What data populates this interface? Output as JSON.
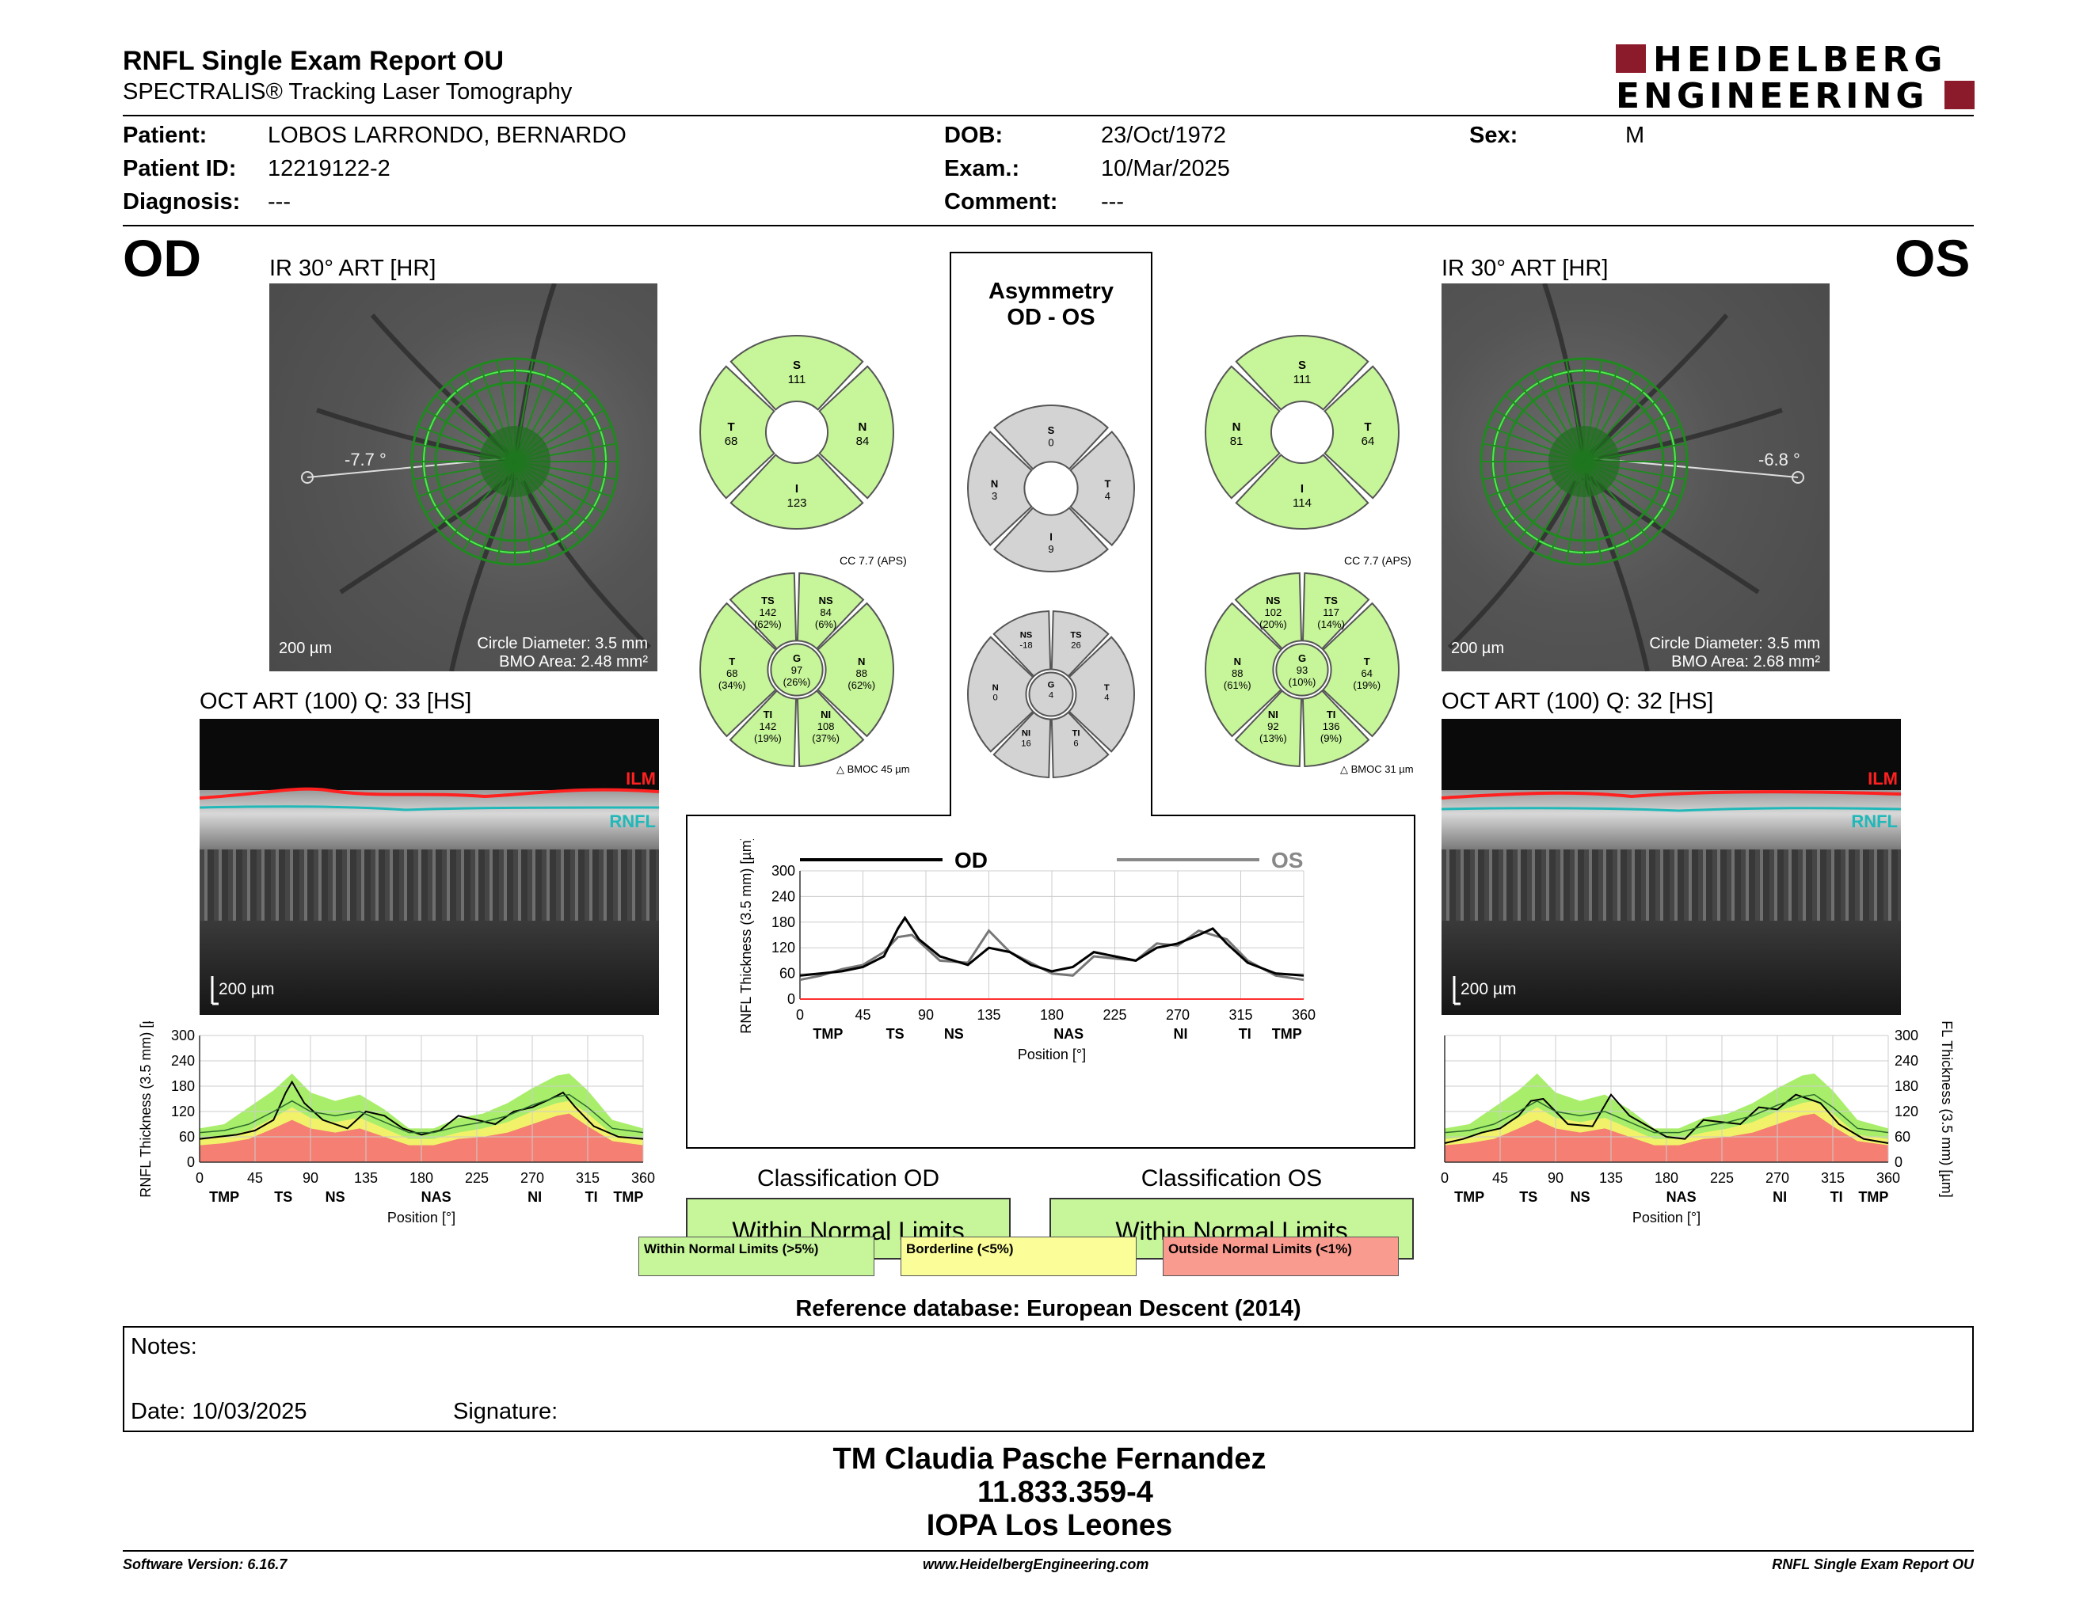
{
  "report": {
    "title": "RNFL Single Exam Report OU",
    "subtitle": "SPECTRALIS® Tracking Laser Tomography",
    "logo_line1": "HEIDELBERG",
    "logo_line2": "ENGINEERING",
    "brand_color": "#8b1a2b"
  },
  "patient": {
    "patient_label": "Patient:",
    "patient_value": "LOBOS LARRONDO, BERNARDO",
    "id_label": "Patient ID:",
    "id_value": "12219122-2",
    "diag_label": "Diagnosis:",
    "diag_value": "---",
    "dob_label": "DOB:",
    "dob_value": "23/Oct/1972",
    "exam_label": "Exam.:",
    "exam_value": "10/Mar/2025",
    "comment_label": "Comment:",
    "comment_value": "---",
    "sex_label": "Sex:",
    "sex_value": "M"
  },
  "od": {
    "eye": "OD",
    "ir_label": "IR 30° ART [HR]",
    "angle": "-7.7 °",
    "scale": "200 µm",
    "circle_diam": "Circle Diameter: 3.5 mm",
    "bmo_area": "BMO Area: 2.48 mm²",
    "oct_label": "OCT ART (100) Q: 33 [HS]",
    "ilm": "ILM",
    "rnfl": "RNFL",
    "oct_scale": "200 µm",
    "quad": {
      "S": "S",
      "S_val": "111",
      "T": "T",
      "T_val": "68",
      "N": "N",
      "N_val": "84",
      "I": "I",
      "I_val": "123"
    },
    "cc": "CC 7.7 (APS)",
    "sect": {
      "TS": "TS",
      "TS_v": "142",
      "TS_p": "(62%)",
      "NS": "NS",
      "NS_v": "84",
      "NS_p": "(6%)",
      "T": "T",
      "T_v": "68",
      "T_p": "(34%)",
      "G": "G",
      "G_v": "97",
      "G_p": "(26%)",
      "N": "N",
      "N_v": "88",
      "N_p": "(62%)",
      "TI": "TI",
      "TI_v": "142",
      "TI_p": "(19%)",
      "NI": "NI",
      "NI_v": "108",
      "NI_p": "(37%)"
    },
    "bmoc": "BMOC 45 µm"
  },
  "os": {
    "eye": "OS",
    "ir_label": "IR 30° ART [HR]",
    "angle": "-6.8 °",
    "scale": "200 µm",
    "circle_diam": "Circle Diameter: 3.5 mm",
    "bmo_area": "BMO Area: 2.68 mm²",
    "oct_label": "OCT ART (100) Q: 32 [HS]",
    "ilm": "ILM",
    "rnfl": "RNFL",
    "oct_scale": "200 µm",
    "quad": {
      "S": "S",
      "S_val": "111",
      "T": "T",
      "T_val": "64",
      "N": "N",
      "N_val": "81",
      "I": "I",
      "I_val": "114"
    },
    "cc": "CC 7.7 (APS)",
    "sect": {
      "NS": "NS",
      "NS_v": "102",
      "NS_p": "(20%)",
      "TS": "TS",
      "TS_v": "117",
      "TS_p": "(14%)",
      "N": "N",
      "N_v": "88",
      "N_p": "(61%)",
      "G": "G",
      "G_v": "93",
      "G_p": "(10%)",
      "T": "T",
      "T_v": "64",
      "T_p": "(19%)",
      "NI": "NI",
      "NI_v": "92",
      "NI_p": "(13%)",
      "TI": "TI",
      "TI_v": "136",
      "TI_p": "(9%)"
    },
    "bmoc": "BMOC 31 µm"
  },
  "asym": {
    "title1": "Asymmetry",
    "title2": "OD - OS",
    "quad": {
      "S": "S",
      "S_val": "0",
      "N": "N",
      "N_val": "3",
      "T": "T",
      "T_val": "4",
      "I": "I",
      "I_val": "9"
    },
    "sect": {
      "NS": "NS",
      "NS_v": "-18",
      "TS": "TS",
      "TS_v": "26",
      "N": "N",
      "N_v": "0",
      "G": "G",
      "G_v": "4",
      "T": "T",
      "T_v": "4",
      "NI": "NI",
      "NI_v": "16",
      "TI": "TI",
      "TI_v": "6"
    }
  },
  "plots": {
    "ylabel": "RNFL Thickness (3.5 mm) [µm]",
    "xlabel": "Position [°]",
    "y_ticks": [
      "300",
      "240",
      "180",
      "120",
      "60",
      "0"
    ],
    "y_ticks_center": [
      "300",
      "240",
      "180",
      "120",
      "60",
      "0"
    ],
    "x_ticks": [
      "0",
      "45",
      "90",
      "135",
      "180",
      "225",
      "270",
      "315",
      "360"
    ],
    "sector_labels": [
      "TMP",
      "TS",
      "NS",
      "NAS",
      "NI",
      "TI",
      "TMP"
    ],
    "legend_od": "OD",
    "legend_os": "OS"
  },
  "chart_data": [
    {
      "type": "line",
      "title": "",
      "xlabel": "Position [°]",
      "ylabel": "RNFL Thickness (3.5 mm) [µm]",
      "xlim": [
        0,
        360
      ],
      "ylim": [
        0,
        300
      ],
      "series": [
        {
          "name": "OD",
          "x": [
            0,
            15,
            30,
            45,
            60,
            70,
            75,
            85,
            100,
            120,
            135,
            150,
            165,
            180,
            195,
            210,
            225,
            240,
            255,
            270,
            285,
            295,
            305,
            320,
            340,
            360
          ],
          "y": [
            55,
            60,
            65,
            75,
            100,
            165,
            190,
            140,
            100,
            80,
            120,
            110,
            80,
            65,
            75,
            110,
            100,
            90,
            120,
            130,
            150,
            165,
            130,
            85,
            60,
            55
          ]
        },
        {
          "name": "OS",
          "x": [
            0,
            15,
            30,
            45,
            60,
            70,
            80,
            90,
            100,
            120,
            135,
            150,
            165,
            180,
            195,
            210,
            225,
            240,
            255,
            270,
            285,
            295,
            305,
            320,
            340,
            360
          ],
          "y": [
            45,
            55,
            70,
            80,
            110,
            145,
            150,
            120,
            90,
            85,
            160,
            110,
            85,
            60,
            55,
            100,
            95,
            90,
            130,
            125,
            160,
            150,
            140,
            90,
            55,
            45
          ]
        }
      ]
    },
    {
      "type": "area",
      "title": "",
      "xlabel": "Position [°]",
      "ylabel": "RNFL Thickness (3.5 mm) [µm]",
      "xlim": [
        0,
        360
      ],
      "ylim": [
        0,
        300
      ],
      "series": [
        {
          "name": "OD",
          "x": [
            0,
            15,
            30,
            45,
            60,
            70,
            75,
            85,
            100,
            120,
            135,
            150,
            165,
            180,
            195,
            210,
            225,
            240,
            255,
            270,
            285,
            295,
            305,
            320,
            340,
            360
          ],
          "y": [
            55,
            60,
            65,
            75,
            100,
            165,
            190,
            140,
            100,
            80,
            120,
            110,
            80,
            65,
            75,
            110,
            100,
            90,
            120,
            130,
            150,
            165,
            130,
            85,
            60,
            55
          ]
        }
      ]
    },
    {
      "type": "area",
      "title": "",
      "xlabel": "Position [°]",
      "ylabel": "RNFL Thickness (3.5 mm) [µm]",
      "xlim": [
        0,
        360
      ],
      "ylim": [
        0,
        300
      ],
      "series": [
        {
          "name": "OS",
          "x": [
            0,
            15,
            30,
            45,
            60,
            70,
            80,
            90,
            100,
            120,
            135,
            150,
            165,
            180,
            195,
            210,
            225,
            240,
            255,
            270,
            285,
            295,
            305,
            320,
            340,
            360
          ],
          "y": [
            45,
            55,
            70,
            80,
            110,
            145,
            150,
            120,
            90,
            85,
            160,
            110,
            85,
            60,
            55,
            100,
            95,
            90,
            130,
            125,
            160,
            150,
            140,
            90,
            55,
            45
          ]
        }
      ]
    }
  ],
  "norm_bands": {
    "x": [
      0,
      20,
      40,
      60,
      75,
      90,
      110,
      130,
      150,
      170,
      190,
      210,
      230,
      250,
      270,
      290,
      300,
      315,
      335,
      360
    ],
    "red_top": [
      40,
      45,
      55,
      80,
      100,
      80,
      70,
      80,
      60,
      40,
      40,
      55,
      60,
      70,
      90,
      110,
      115,
      85,
      50,
      40
    ],
    "yellow_top": [
      55,
      60,
      75,
      105,
      130,
      105,
      95,
      105,
      80,
      55,
      55,
      70,
      80,
      95,
      120,
      140,
      145,
      115,
      65,
      55
    ],
    "green_top": [
      80,
      90,
      130,
      170,
      210,
      165,
      145,
      160,
      125,
      80,
      80,
      105,
      115,
      140,
      175,
      205,
      210,
      170,
      100,
      80
    ]
  },
  "classification": {
    "od_title": "Classification OD",
    "od_value": "Within Normal Limits",
    "os_title": "Classification OS",
    "os_value": "Within Normal Limits"
  },
  "legend": {
    "wnl": "Within Normal Limits (>5%)",
    "bl": "Borderline (<5%)",
    "onl": "Outside Normal Limits (<1%)",
    "green": "#c7f59a",
    "yellow": "#fbfd99",
    "red": "#f99b8f"
  },
  "reference": "Reference database: European Descent (2014)",
  "notes": {
    "notes_label": "Notes:",
    "date_label": "Date: 10/03/2025",
    "signature_label": "Signature:"
  },
  "stamp": {
    "line1": "TM Claudia Pasche Fernandez",
    "line2": "11.833.359-4",
    "line3": "IOPA Los Leones"
  },
  "footer": {
    "left": "Software Version: 6.16.7",
    "center": "www.HeidelbergEngineering.com",
    "right": "RNFL Single Exam Report OU"
  }
}
